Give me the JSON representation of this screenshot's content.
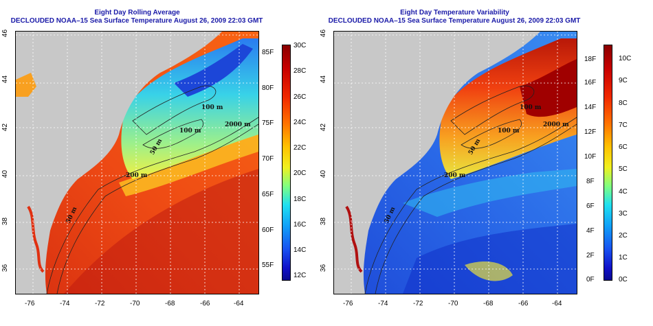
{
  "colors": {
    "land": "#c8c8c8",
    "title": "#1a1aa8",
    "grid": "#ffffff",
    "contour": "#222222"
  },
  "left_panel": {
    "title_line1": "Eight Day Rolling Average",
    "title_line2": "DECLOUDED NOAA–15 Sea Surface Temperature August 26, 2009 22:03 GMT",
    "x_ticks": [
      "-76",
      "-74",
      "-72",
      "-70",
      "-68",
      "-66",
      "-64"
    ],
    "y_ticks": [
      "46",
      "44",
      "42",
      "40",
      "38",
      "36"
    ],
    "colorbar_right_labels": [
      "30C",
      "28C",
      "26C",
      "24C",
      "22C",
      "20C",
      "18C",
      "16C",
      "14C",
      "12C"
    ],
    "colorbar_left_labels": [
      "85F",
      "80F",
      "75F",
      "70F",
      "65F",
      "60F",
      "55F"
    ],
    "contour_labels": [
      "100 m",
      "100 m",
      "2000 m",
      "50 m",
      "200 m",
      "50 m"
    ]
  },
  "right_panel": {
    "title_line1": "Eight Day Temperature Variability",
    "title_line2": "DECLOUDED NOAA–15 Sea Surface Temperature August 26, 2009 22:03 GMT",
    "x_ticks": [
      "-76",
      "-74",
      "-72",
      "-70",
      "-68",
      "-66",
      "-64"
    ],
    "y_ticks": [
      "46",
      "44",
      "42",
      "40",
      "38",
      "36"
    ],
    "colorbar_left_labels": [
      "18F",
      "16F",
      "14F",
      "12F",
      "10F",
      "8F",
      "6F",
      "4F",
      "2F",
      "0F"
    ],
    "colorbar_right_labels": [
      "10C",
      "9C",
      "8C",
      "7C",
      "6C",
      "5C",
      "4C",
      "3C",
      "2C",
      "1C",
      "0C"
    ],
    "contour_labels": [
      "100 m",
      "100 m",
      "2000 m",
      "50 m",
      "200 m",
      "50 m"
    ]
  }
}
